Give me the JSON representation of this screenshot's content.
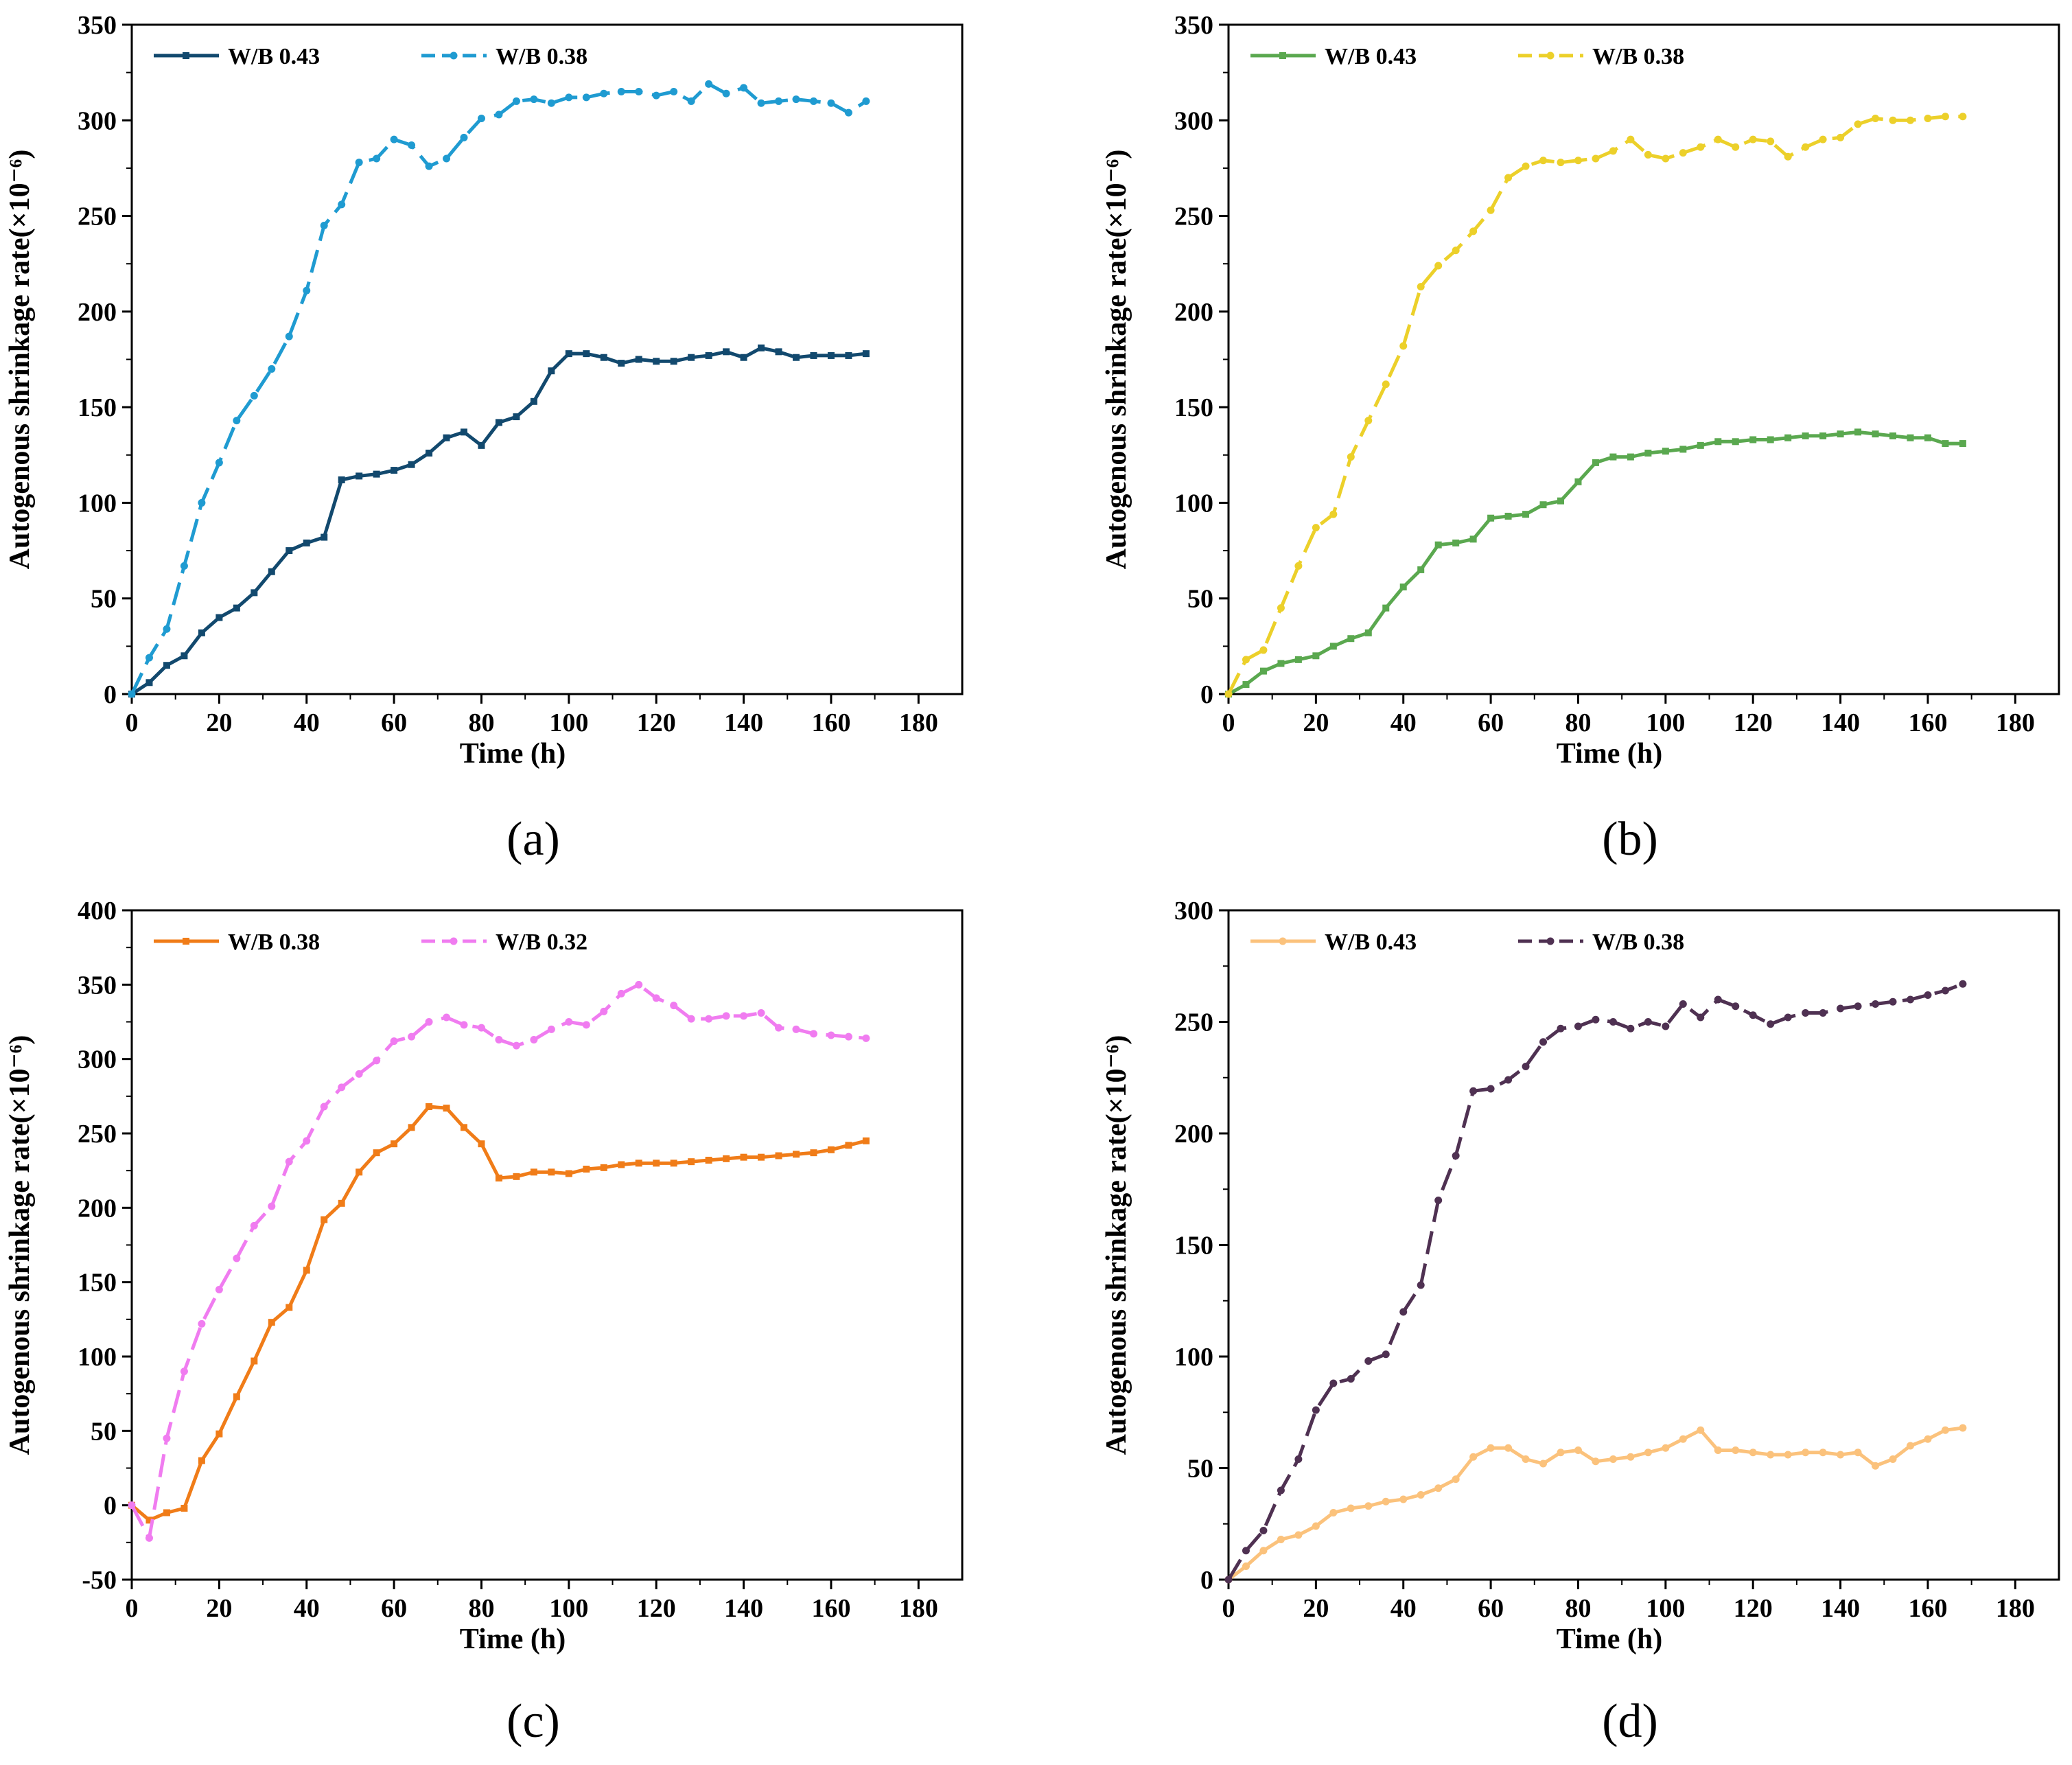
{
  "chart_data": [
    {
      "type": "line",
      "panel_label": "(a)",
      "xlabel": "Time (h)",
      "ylabel": "Autogenous shrinkage rate(×10⁻⁶)",
      "xlim": [
        0,
        190
      ],
      "ylim": [
        0,
        350
      ],
      "xticks": [
        0,
        20,
        40,
        60,
        80,
        100,
        120,
        140,
        160,
        180
      ],
      "yticks": [
        0,
        50,
        100,
        150,
        200,
        250,
        300,
        350
      ],
      "legend_position": "top-left",
      "series": [
        {
          "name": "W/B 0.43",
          "color": "#12496e",
          "dash": "solid",
          "marker": "square",
          "x": [
            0,
            4,
            8,
            12,
            16,
            20,
            24,
            28,
            32,
            36,
            40,
            44,
            48,
            52,
            56,
            60,
            64,
            68,
            72,
            76,
            80,
            84,
            88,
            92,
            96,
            100,
            104,
            108,
            112,
            116,
            120,
            124,
            128,
            132,
            136,
            140,
            144,
            148,
            152,
            156,
            160,
            164,
            168
          ],
          "y": [
            0,
            6,
            15,
            20,
            32,
            40,
            45,
            53,
            64,
            75,
            79,
            82,
            112,
            114,
            115,
            117,
            120,
            126,
            134,
            137,
            130,
            142,
            145,
            153,
            169,
            178,
            178,
            176,
            173,
            175,
            174,
            174,
            176,
            177,
            179,
            176,
            181,
            179,
            176,
            177,
            177,
            177,
            178
          ]
        },
        {
          "name": "W/B 0.38",
          "color": "#1f9bd1",
          "dash": "dashed",
          "marker": "circle",
          "x": [
            0,
            4,
            8,
            12,
            16,
            20,
            24,
            28,
            32,
            36,
            40,
            44,
            48,
            52,
            56,
            60,
            64,
            68,
            72,
            76,
            80,
            84,
            88,
            92,
            96,
            100,
            104,
            108,
            112,
            116,
            120,
            124,
            128,
            132,
            136,
            140,
            144,
            148,
            152,
            156,
            160,
            164,
            168
          ],
          "y": [
            0,
            19,
            34,
            67,
            100,
            121,
            143,
            156,
            170,
            187,
            211,
            245,
            256,
            278,
            280,
            290,
            287,
            276,
            280,
            291,
            301,
            303,
            310,
            311,
            309,
            312,
            312,
            314,
            315,
            315,
            313,
            315,
            310,
            319,
            314,
            317,
            309,
            310,
            311,
            310,
            309,
            304,
            310
          ]
        }
      ]
    },
    {
      "type": "line",
      "panel_label": "(b)",
      "xlabel": "Time (h)",
      "ylabel": "Autogenous shrinkage rate(×10⁻⁶)",
      "xlim": [
        0,
        190
      ],
      "ylim": [
        0,
        350
      ],
      "xticks": [
        0,
        20,
        40,
        60,
        80,
        100,
        120,
        140,
        160,
        180
      ],
      "yticks": [
        0,
        50,
        100,
        150,
        200,
        250,
        300,
        350
      ],
      "legend_position": "top-left",
      "series": [
        {
          "name": "W/B 0.43",
          "color": "#5aa84f",
          "dash": "solid",
          "marker": "square",
          "x": [
            0,
            4,
            8,
            12,
            16,
            20,
            24,
            28,
            32,
            36,
            40,
            44,
            48,
            52,
            56,
            60,
            64,
            68,
            72,
            76,
            80,
            84,
            88,
            92,
            96,
            100,
            104,
            108,
            112,
            116,
            120,
            124,
            128,
            132,
            136,
            140,
            144,
            148,
            152,
            156,
            160,
            164,
            168
          ],
          "y": [
            0,
            5,
            12,
            16,
            18,
            20,
            25,
            29,
            32,
            45,
            56,
            65,
            78,
            79,
            81,
            92,
            93,
            94,
            99,
            101,
            111,
            121,
            124,
            124,
            126,
            127,
            128,
            130,
            132,
            132,
            133,
            133,
            134,
            135,
            135,
            136,
            137,
            136,
            135,
            134,
            134,
            131,
            131
          ]
        },
        {
          "name": "W/B 0.38",
          "color": "#ecd02a",
          "dash": "dashed",
          "marker": "circle",
          "x": [
            0,
            4,
            8,
            12,
            16,
            20,
            24,
            28,
            32,
            36,
            40,
            44,
            48,
            52,
            56,
            60,
            64,
            68,
            72,
            76,
            80,
            84,
            88,
            92,
            96,
            100,
            104,
            108,
            112,
            116,
            120,
            124,
            128,
            132,
            136,
            140,
            144,
            148,
            152,
            156,
            160,
            164,
            168
          ],
          "y": [
            0,
            18,
            23,
            45,
            67,
            87,
            94,
            124,
            143,
            162,
            182,
            213,
            224,
            232,
            242,
            253,
            270,
            276,
            279,
            278,
            279,
            280,
            284,
            290,
            282,
            280,
            283,
            286,
            290,
            286,
            290,
            289,
            281,
            286,
            290,
            291,
            298,
            301,
            300,
            300,
            301,
            302,
            302
          ]
        }
      ]
    },
    {
      "type": "line",
      "panel_label": "(c)",
      "xlabel": "Time (h)",
      "ylabel": "Autogenous shrinkage rate(×10⁻⁶)",
      "xlim": [
        0,
        190
      ],
      "ylim": [
        -50,
        400
      ],
      "xticks": [
        0,
        20,
        40,
        60,
        80,
        100,
        120,
        140,
        160,
        180
      ],
      "yticks": [
        -50,
        0,
        50,
        100,
        150,
        200,
        250,
        300,
        350,
        400
      ],
      "legend_position": "top-left",
      "series": [
        {
          "name": "W/B 0.38",
          "color": "#f07c18",
          "dash": "solid",
          "marker": "square",
          "x": [
            0,
            4,
            8,
            12,
            16,
            20,
            24,
            28,
            32,
            36,
            40,
            44,
            48,
            52,
            56,
            60,
            64,
            68,
            72,
            76,
            80,
            84,
            88,
            92,
            96,
            100,
            104,
            108,
            112,
            116,
            120,
            124,
            128,
            132,
            136,
            140,
            144,
            148,
            152,
            156,
            160,
            164,
            168
          ],
          "y": [
            0,
            -10,
            -5,
            -2,
            30,
            48,
            73,
            97,
            123,
            133,
            158,
            192,
            203,
            224,
            237,
            243,
            254,
            268,
            267,
            254,
            243,
            220,
            221,
            224,
            224,
            223,
            226,
            227,
            229,
            230,
            230,
            230,
            231,
            232,
            233,
            234,
            234,
            235,
            236,
            237,
            239,
            242,
            245
          ]
        },
        {
          "name": "W/B 0.32",
          "color": "#f07cf0",
          "dash": "dashed",
          "marker": "circle",
          "x": [
            0,
            4,
            8,
            12,
            16,
            20,
            24,
            28,
            32,
            36,
            40,
            44,
            48,
            52,
            56,
            60,
            64,
            68,
            72,
            76,
            80,
            84,
            88,
            92,
            96,
            100,
            104,
            108,
            112,
            116,
            120,
            124,
            128,
            132,
            136,
            140,
            144,
            148,
            152,
            156,
            160,
            164,
            168
          ],
          "y": [
            0,
            -22,
            45,
            90,
            122,
            145,
            166,
            188,
            201,
            231,
            245,
            268,
            281,
            290,
            299,
            312,
            315,
            325,
            328,
            323,
            321,
            313,
            309,
            313,
            320,
            325,
            323,
            332,
            344,
            350,
            341,
            336,
            327,
            327,
            329,
            329,
            331,
            321,
            320,
            317,
            316,
            315,
            314
          ]
        }
      ]
    },
    {
      "type": "line",
      "panel_label": "(d)",
      "xlabel": "Time (h)",
      "ylabel": "Autogenous shrinkage rate(×10⁻⁶)",
      "xlim": [
        0,
        190
      ],
      "ylim": [
        0,
        300
      ],
      "xticks": [
        0,
        20,
        40,
        60,
        80,
        100,
        120,
        140,
        160,
        180
      ],
      "yticks": [
        0,
        50,
        100,
        150,
        200,
        250,
        300
      ],
      "legend_position": "top-left",
      "series": [
        {
          "name": "W/B 0.43",
          "color": "#fbc27c",
          "dash": "solid",
          "marker": "circle",
          "x": [
            0,
            4,
            8,
            12,
            16,
            20,
            24,
            28,
            32,
            36,
            40,
            44,
            48,
            52,
            56,
            60,
            64,
            68,
            72,
            76,
            80,
            84,
            88,
            92,
            96,
            100,
            104,
            108,
            112,
            116,
            120,
            124,
            128,
            132,
            136,
            140,
            144,
            148,
            152,
            156,
            160,
            164,
            168
          ],
          "y": [
            0,
            6,
            13,
            18,
            20,
            24,
            30,
            32,
            33,
            35,
            36,
            38,
            41,
            45,
            55,
            59,
            59,
            54,
            52,
            57,
            58,
            53,
            54,
            55,
            57,
            59,
            63,
            67,
            58,
            58,
            57,
            56,
            56,
            57,
            57,
            56,
            57,
            51,
            54,
            60,
            63,
            67,
            68
          ]
        },
        {
          "name": "W/B 0.38",
          "color": "#4f3152",
          "dash": "dashed",
          "marker": "circle",
          "x": [
            0,
            4,
            8,
            12,
            16,
            20,
            24,
            28,
            32,
            36,
            40,
            44,
            48,
            52,
            56,
            60,
            64,
            68,
            72,
            76,
            80,
            84,
            88,
            92,
            96,
            100,
            104,
            108,
            112,
            116,
            120,
            124,
            128,
            132,
            136,
            140,
            144,
            148,
            152,
            156,
            160,
            164,
            168
          ],
          "y": [
            0,
            13,
            22,
            40,
            54,
            76,
            88,
            90,
            98,
            101,
            120,
            132,
            170,
            190,
            219,
            220,
            224,
            230,
            241,
            247,
            248,
            251,
            250,
            247,
            250,
            248,
            258,
            252,
            260,
            257,
            253,
            249,
            252,
            254,
            254,
            256,
            257,
            258,
            259,
            260,
            262,
            264,
            267
          ]
        }
      ]
    }
  ]
}
